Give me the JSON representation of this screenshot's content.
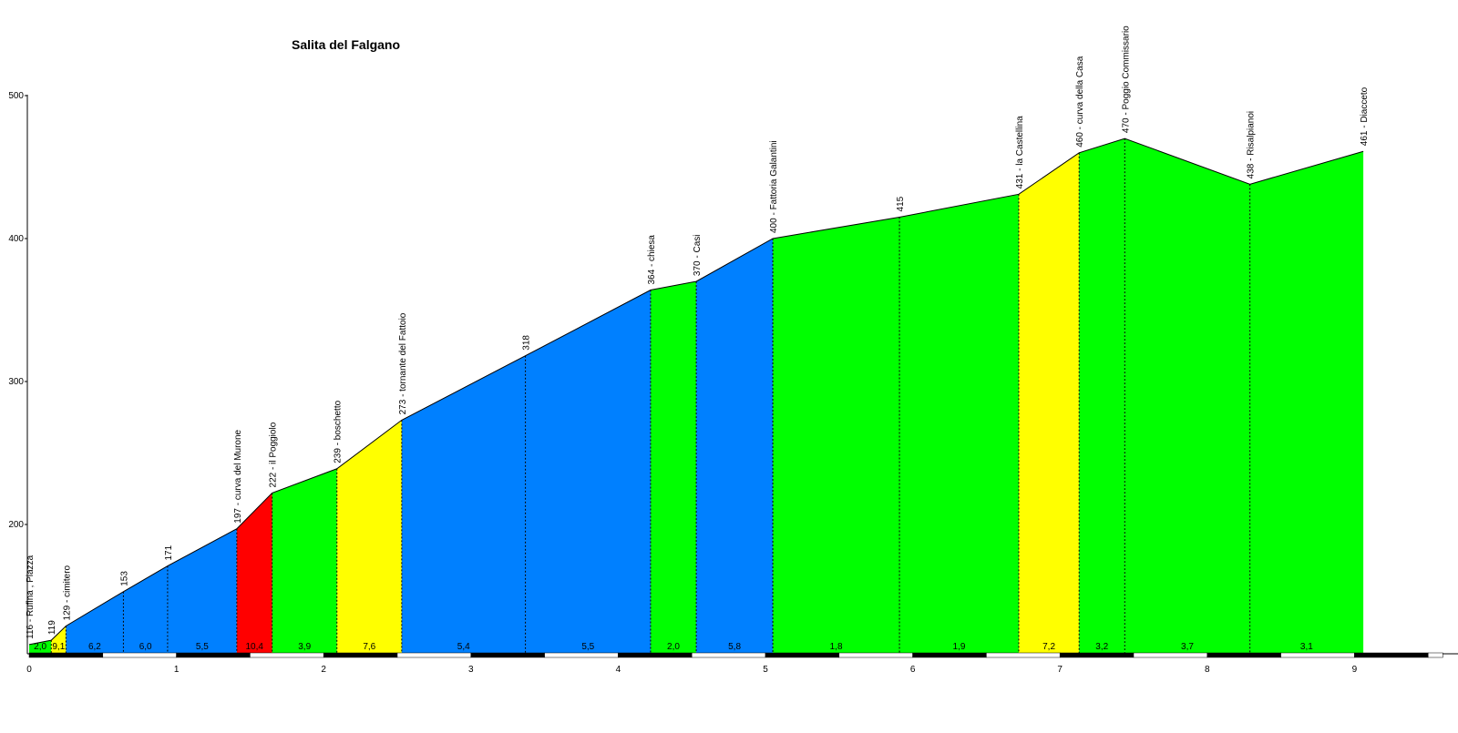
{
  "chart_data": {
    "type": "area",
    "title": "Salita del Falgano",
    "xlabel": "",
    "ylabel": "",
    "xlim": [
      0,
      9.6
    ],
    "ylim": [
      110,
      500
    ],
    "x_ticks": [
      "0",
      "1",
      "2",
      "3",
      "4",
      "5",
      "6",
      "7",
      "8",
      "9"
    ],
    "y_ticks": [
      "200",
      "300",
      "400",
      "500"
    ],
    "grid": false,
    "legend": "none",
    "points": [
      {
        "x": 0.0,
        "elev": 116,
        "label": "116 - Rufina , Piazza"
      },
      {
        "x": 0.15,
        "elev": 119,
        "label": "119"
      },
      {
        "x": 0.25,
        "elev": 129,
        "label": "129 - cimitero"
      },
      {
        "x": 0.64,
        "elev": 153,
        "label": "153"
      },
      {
        "x": 0.94,
        "elev": 171,
        "label": "171"
      },
      {
        "x": 1.41,
        "elev": 197,
        "label": "197 - curva del Murone"
      },
      {
        "x": 1.65,
        "elev": 222,
        "label": "222 - il Poggiolo"
      },
      {
        "x": 2.09,
        "elev": 239,
        "label": "239 - boschetto"
      },
      {
        "x": 2.53,
        "elev": 273,
        "label": "273 - tornante del Fattoio"
      },
      {
        "x": 3.37,
        "elev": 318,
        "label": "318"
      },
      {
        "x": 4.22,
        "elev": 364,
        "label": "364 - chiesa"
      },
      {
        "x": 4.53,
        "elev": 370,
        "label": "370 - Casi"
      },
      {
        "x": 5.05,
        "elev": 400,
        "label": "400 - Fattoria Galantini"
      },
      {
        "x": 5.91,
        "elev": 415,
        "label": "415"
      },
      {
        "x": 6.72,
        "elev": 431,
        "label": "431 - la Castellina"
      },
      {
        "x": 7.13,
        "elev": 460,
        "label": "460 - curva della Casa"
      },
      {
        "x": 7.44,
        "elev": 470,
        "label": "470 - Poggio Commissario"
      },
      {
        "x": 8.29,
        "elev": 438,
        "label": "438 - Risalpianoi"
      },
      {
        "x": 9.06,
        "elev": 461,
        "label": "461 - Diacceto"
      }
    ],
    "segments": [
      {
        "gradient": "2,0",
        "color": "#00ff00"
      },
      {
        "gradient": "9,1",
        "color": "#ffff00"
      },
      {
        "gradient": "6,2",
        "color": "#0080ff"
      },
      {
        "gradient": "6,0",
        "color": "#0080ff"
      },
      {
        "gradient": "5,5",
        "color": "#0080ff"
      },
      {
        "gradient": "10,4",
        "color": "#ff0000"
      },
      {
        "gradient": "3,9",
        "color": "#00ff00"
      },
      {
        "gradient": "7,6",
        "color": "#ffff00"
      },
      {
        "gradient": "5,4",
        "color": "#0080ff"
      },
      {
        "gradient": "5,5",
        "color": "#0080ff"
      },
      {
        "gradient": "2,0",
        "color": "#00ff00"
      },
      {
        "gradient": "5,8",
        "color": "#0080ff"
      },
      {
        "gradient": "1,8",
        "color": "#00ff00"
      },
      {
        "gradient": "1,9",
        "color": "#00ff00"
      },
      {
        "gradient": "7,2",
        "color": "#ffff00"
      },
      {
        "gradient": "3,2",
        "color": "#00ff00"
      },
      {
        "gradient": "3,7",
        "color": "#00ff00"
      },
      {
        "gradient": "3,1",
        "color": "#00ff00"
      }
    ]
  }
}
